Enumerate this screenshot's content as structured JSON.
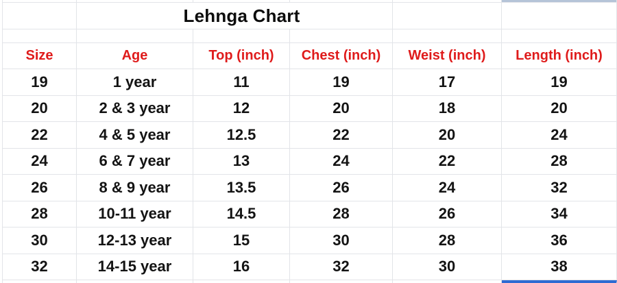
{
  "app": {
    "kind_label": "spreadsheet-grid"
  },
  "sheet": {
    "title": "Lehnga Chart",
    "columns": [
      "Size",
      "Age",
      "Top (inch)",
      "Chest (inch)",
      "Weist (inch)",
      "Length (inch)"
    ],
    "rows": [
      [
        "19",
        "1 year",
        "11",
        "19",
        "17",
        "19"
      ],
      [
        "20",
        "2 & 3 year",
        "12",
        "20",
        "18",
        "20"
      ],
      [
        "22",
        "4 & 5 year",
        "12.5",
        "22",
        "20",
        "24"
      ],
      [
        "24",
        "6 & 7 year",
        "13",
        "24",
        "22",
        "28"
      ],
      [
        "26",
        "8 & 9 year",
        "13.5",
        "26",
        "24",
        "32"
      ],
      [
        "28",
        "10-11 year",
        "14.5",
        "28",
        "26",
        "34"
      ],
      [
        "30",
        "12-13 year",
        "15",
        "30",
        "28",
        "36"
      ],
      [
        "32",
        "14-15 year",
        "16",
        "32",
        "30",
        "38"
      ]
    ],
    "colors": {
      "header_text": "#df1b1b",
      "grid_line": "#e2e4e8",
      "selection_border": "#2e6bd3",
      "selected_column_strip": "#b5c4d8",
      "body_text": "#131313",
      "background": "#ffffff"
    }
  }
}
